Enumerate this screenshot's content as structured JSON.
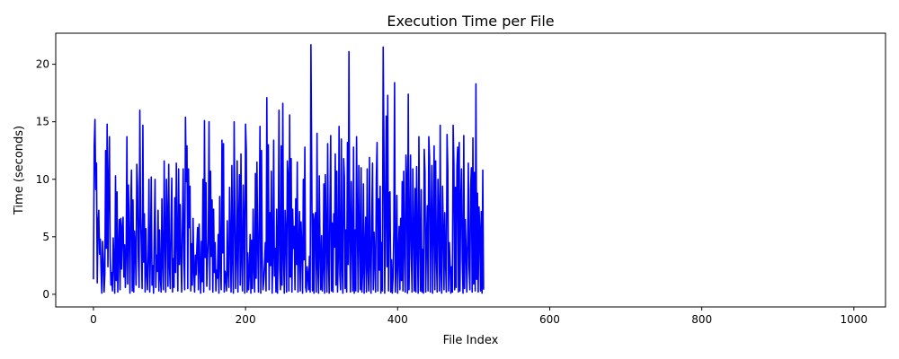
{
  "chart_data": {
    "type": "line",
    "title": "Execution Time per File",
    "xlabel": "File Index",
    "ylabel": "Time (seconds)",
    "xlim": [
      -49.6,
      1041.6
    ],
    "ylim": [
      -1.1,
      22.7
    ],
    "grid": false,
    "legend": "none",
    "x_ticks": [
      0,
      200,
      400,
      600,
      800,
      1000
    ],
    "y_ticks": [
      0,
      5,
      10,
      15,
      20
    ],
    "series": [
      {
        "color": "#0000ff",
        "x_start": 0,
        "x_step": 1,
        "values": [
          1.3,
          12.9,
          15.2,
          9.1,
          11.4,
          1.0,
          6.2,
          7.3,
          3.5,
          4.8,
          2.1,
          0.1,
          4.6,
          3.0,
          0.2,
          1.8,
          12.5,
          4.0,
          14.8,
          2.4,
          9.7,
          13.7,
          3.2,
          0.8,
          1.9,
          0.3,
          4.9,
          2.6,
          0.1,
          10.3,
          1.2,
          8.9,
          0.2,
          3.8,
          6.5,
          0.4,
          6.6,
          2.2,
          5.8,
          6.7,
          1.5,
          4.3,
          0.6,
          3.6,
          13.7,
          0.9,
          9.5,
          5.2,
          0.1,
          7.4,
          10.8,
          0.3,
          8.2,
          0.2,
          5.5,
          4.1,
          0.8,
          11.3,
          9.4,
          3.2,
          0.6,
          16.0,
          6.8,
          3.9,
          0.5,
          14.7,
          2.8,
          7.0,
          0.2,
          5.7,
          1.9,
          0.4,
          3.3,
          10.0,
          0.2,
          3.6,
          10.2,
          0.8,
          2.5,
          0.1,
          5.3,
          10.0,
          0.6,
          3.4,
          2.0,
          7.3,
          0.3,
          5.6,
          1.4,
          0.2,
          8.3,
          2.7,
          0.4,
          11.6,
          5.0,
          0.2,
          10.0,
          6.9,
          0.7,
          11.3,
          2.4,
          0.5,
          6.2,
          10.1,
          0.2,
          3.1,
          0.6,
          8.4,
          1.9,
          11.4,
          4.5,
          0.3,
          10.9,
          2.6,
          7.8,
          3.3,
          0.2,
          6.0,
          10.9,
          3.1,
          0.4,
          15.4,
          9.8,
          12.9,
          0.5,
          10.9,
          5.8,
          9.4,
          0.3,
          4.4,
          0.8,
          6.6,
          2.1,
          0.2,
          3.4,
          1.7,
          4.1,
          5.8,
          0.4,
          6.1,
          2.3,
          0.1,
          4.6,
          1.1,
          10.0,
          0.2,
          15.1,
          3.2,
          9.7,
          0.7,
          3.0,
          4.8,
          15.0,
          0.4,
          10.7,
          3.3,
          8.2,
          0.2,
          7.4,
          1.9,
          4.5,
          0.3,
          2.1,
          1.4,
          5.2,
          0.1,
          8.5,
          2.6,
          0.4,
          13.4,
          3.6,
          13.1,
          0.2,
          2.0,
          1.5,
          0.3,
          6.4,
          1.9,
          0.6,
          9.3,
          4.5,
          0.2,
          11.2,
          3.0,
          0.1,
          15.0,
          7.2,
          0.5,
          3.4,
          11.6,
          0.2,
          6.3,
          10.4,
          0.8,
          12.2,
          2.9,
          0.3,
          9.5,
          5.7,
          0.1,
          14.8,
          12.6,
          0.2,
          3.6,
          0.4,
          1.8,
          5.2,
          0.1,
          4.7,
          0.5,
          7.4,
          2.3,
          0.2,
          10.5,
          1.4,
          11.5,
          4.2,
          0.2,
          6.3,
          14.6,
          0.1,
          12.5,
          3.1,
          0.4,
          1.2,
          2.6,
          4.5,
          0.3,
          17.1,
          2.8,
          13.0,
          0.4,
          7.1,
          2.5,
          10.7,
          0.1,
          3.3,
          13.4,
          1.6,
          4.0,
          0.2,
          7.4,
          0.1,
          4.5,
          16.0,
          2.2,
          0.4,
          12.9,
          0.8,
          16.6,
          3.2,
          0.1,
          7.3,
          5.4,
          0.2,
          11.6,
          10.2,
          0.3,
          15.6,
          1.5,
          11.8,
          0.2,
          7.4,
          4.0,
          5.9,
          0.4,
          8.3,
          2.6,
          11.5,
          0.2,
          3.7,
          7.2,
          0.3,
          6.3,
          4.0,
          0.1,
          10.0,
          3.0,
          12.8,
          0.6,
          0.2,
          2.4,
          1.6,
          0.4,
          3.3,
          0.2,
          21.7,
          11.3,
          0.3,
          7.0,
          0.1,
          6.5,
          7.1,
          0.2,
          14.0,
          2.4,
          0.1,
          10.3,
          3.8,
          0.4,
          5.1,
          0.3,
          2.4,
          9.6,
          0.1,
          10.4,
          4.8,
          0.2,
          13.1,
          3.0,
          0.1,
          7.9,
          13.8,
          0.3,
          6.2,
          0.2,
          7.0,
          4.1,
          12.2,
          0.8,
          10.7,
          0.2,
          3.3,
          14.6,
          1.7,
          0.4,
          13.5,
          2.3,
          0.1,
          11.8,
          10.2,
          0.5,
          5.6,
          0.2,
          13.2,
          2.6,
          21.1,
          4.7,
          0.2,
          9.8,
          5.0,
          0.3,
          12.8,
          0.1,
          5.6,
          0.3,
          13.7,
          6.2,
          0.2,
          11.2,
          4.9,
          0.4,
          11.0,
          0.2,
          2.0,
          9.6,
          0.1,
          3.9,
          6.7,
          0.2,
          10.9,
          2.2,
          0.3,
          11.9,
          2.7,
          0.1,
          6.5,
          11.4,
          0.4,
          5.4,
          3.0,
          0.2,
          10.1,
          13.2,
          0.3,
          8.3,
          2.1,
          9.4,
          0.1,
          4.5,
          0.3,
          21.5,
          12.8,
          0.1,
          7.2,
          15.5,
          2.4,
          17.3,
          0.3,
          8.8,
          8.9,
          0.2,
          3.0,
          0.1,
          1.4,
          5.5,
          18.4,
          0.2,
          2.4,
          8.6,
          0.1,
          3.5,
          5.9,
          0.4,
          6.6,
          1.2,
          9.8,
          0.3,
          10.7,
          4.0,
          0.2,
          12.1,
          9.8,
          0.1,
          17.4,
          0.4,
          5.1,
          12.1,
          3.2,
          0.2,
          10.9,
          5.6,
          0.3,
          9.2,
          0.2,
          11.1,
          4.2,
          0.1,
          13.7,
          5.0,
          0.3,
          9.1,
          0.2,
          3.9,
          0.1,
          12.6,
          10.6,
          0.2,
          4.6,
          7.7,
          0.3,
          13.7,
          11.9,
          0.2,
          6.1,
          11.2,
          0.1,
          5.6,
          12.9,
          0.4,
          11.6,
          3.3,
          0.2,
          10.0,
          6.8,
          0.3,
          14.7,
          1.9,
          0.1,
          9.4,
          5.8,
          0.4,
          7.1,
          2.8,
          0.2,
          13.9,
          10.9,
          0.3,
          4.5,
          2.6,
          0.1,
          2.4,
          0.2,
          14.7,
          11.4,
          0.4,
          9.3,
          0.6,
          11.1,
          12.8,
          0.2,
          13.2,
          0.3,
          8.1,
          10.9,
          2.9,
          0.1,
          13.8,
          0.5,
          6.5,
          4.0,
          0.2,
          4.3,
          11.4,
          2.3,
          0.4,
          9.2,
          11.0,
          0.2,
          13.6,
          0.9,
          10.6,
          0.3,
          18.3,
          1.3,
          8.8,
          0.2,
          7.6,
          5.7,
          0.3,
          7.2,
          0.1,
          10.8,
          0.4
        ]
      }
    ]
  }
}
